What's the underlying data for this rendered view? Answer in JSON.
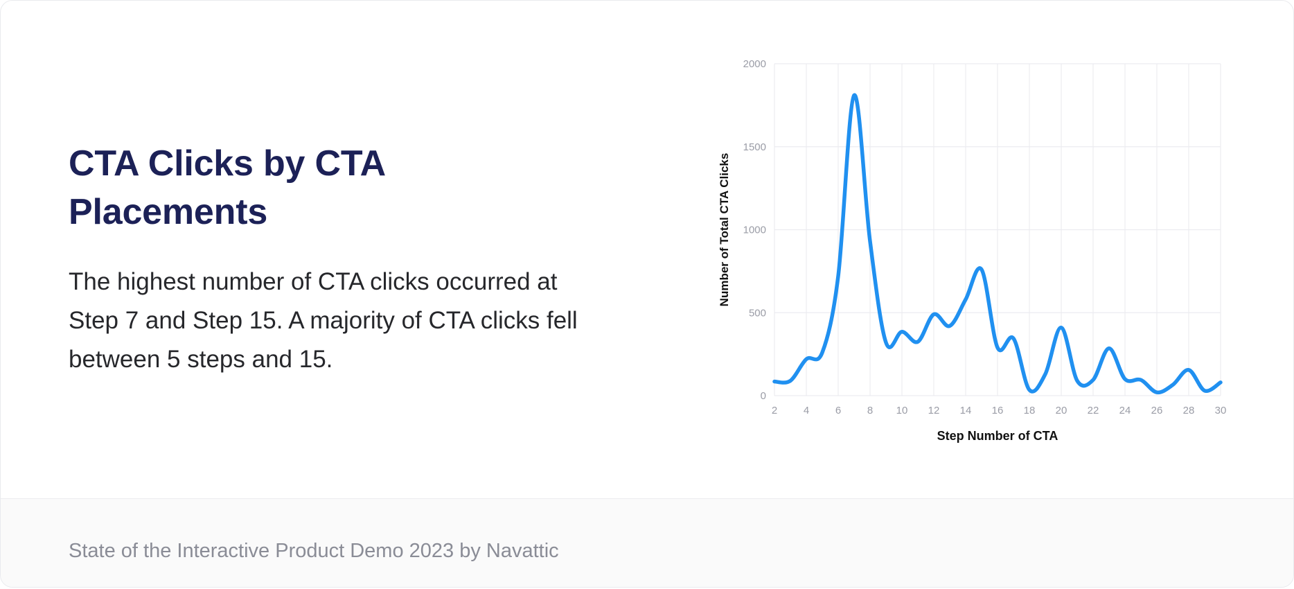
{
  "header": {
    "title": "CTA Clicks by CTA Placements",
    "description": "The highest number of CTA clicks occurred at Step 7 and Step 15. A majority of CTA clicks fell between 5 steps and 15."
  },
  "footer": {
    "credit": "State of the Interactive Product Demo 2023 by Navattic"
  },
  "colors": {
    "title": "#1c2157",
    "line": "#2090f0",
    "grid": "#ececf0",
    "tick_text": "#9a9ca6",
    "axis_label": "#111111"
  },
  "chart_data": {
    "type": "line",
    "xlabel": "Step Number of CTA",
    "ylabel": "Number of Total CTA Clicks",
    "xlim": [
      2,
      30
    ],
    "ylim": [
      0,
      2000
    ],
    "x_ticks": [
      2,
      4,
      6,
      8,
      10,
      12,
      14,
      16,
      18,
      20,
      22,
      24,
      26,
      28,
      30
    ],
    "y_ticks": [
      0,
      500,
      1000,
      1500,
      2000
    ],
    "grid": true,
    "smooth": true,
    "series": [
      {
        "x": [
          2,
          3,
          4,
          5,
          6,
          7,
          8,
          9,
          10,
          11,
          12,
          13,
          14,
          15,
          16,
          17,
          18,
          19,
          20,
          21,
          22,
          23,
          24,
          25,
          26,
          27,
          28,
          29,
          30
        ],
        "y": [
          85,
          90,
          220,
          260,
          720,
          1810,
          930,
          320,
          385,
          325,
          490,
          420,
          580,
          760,
          290,
          345,
          35,
          130,
          410,
          90,
          95,
          285,
          100,
          95,
          20,
          65,
          155,
          30,
          80
        ]
      }
    ]
  }
}
